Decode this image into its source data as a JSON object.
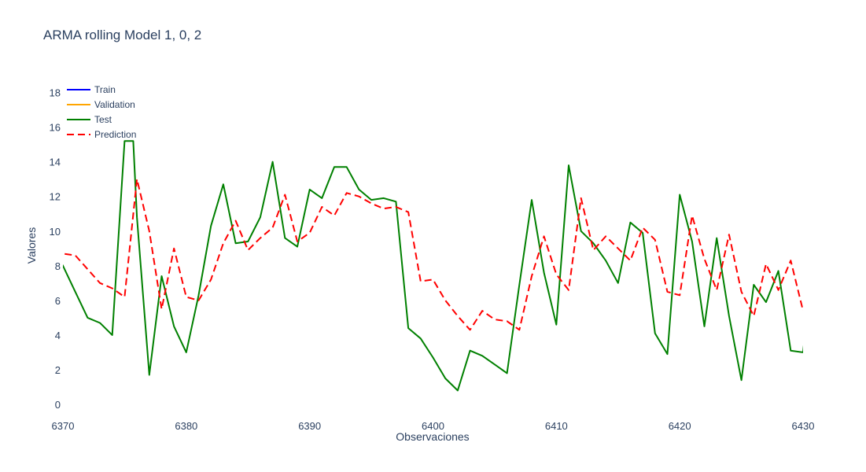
{
  "chart_data": {
    "type": "line",
    "title": "ARMA rolling Model 1, 0, 2",
    "xlabel": "Observaciones",
    "ylabel": "Valores",
    "xlim": [
      6370,
      6430
    ],
    "ylim": [
      -0.5,
      18.8
    ],
    "xticks": [
      6370,
      6380,
      6390,
      6400,
      6410,
      6420,
      6430
    ],
    "yticks": [
      0,
      2,
      4,
      6,
      8,
      10,
      12,
      14,
      16,
      18
    ],
    "grid": false,
    "legend_position": "top-left",
    "series": [
      {
        "name": "Train",
        "color": "#0000ff",
        "dash": "solid",
        "x": [],
        "values": []
      },
      {
        "name": "Validation",
        "color": "#ffa500",
        "dash": "solid",
        "x": [],
        "values": []
      },
      {
        "name": "Test",
        "color": "#008000",
        "dash": "solid",
        "x": [
          6369.5,
          6370,
          6371,
          6372,
          6373,
          6374,
          6375,
          6375.7,
          6376,
          6377,
          6378,
          6379,
          6380,
          6381,
          6382,
          6383,
          6384,
          6385,
          6386,
          6387,
          6388,
          6389,
          6390,
          6391,
          6392,
          6393,
          6394,
          6395,
          6396,
          6397,
          6398,
          6399,
          6400,
          6401,
          6402,
          6403,
          6404,
          6405,
          6406,
          6407,
          6408,
          6409,
          6410,
          6411,
          6412,
          6413,
          6414,
          6415,
          6416,
          6417,
          6418,
          6419,
          6420,
          6421,
          6422,
          6423,
          6424,
          6425,
          6426,
          6427,
          6428,
          6429,
          6430,
          6430.2
        ],
        "values": [
          8.6,
          8.0,
          6.5,
          5.0,
          4.7,
          4.0,
          15.2,
          15.2,
          10.8,
          1.7,
          7.4,
          4.5,
          3.0,
          6.3,
          10.3,
          12.7,
          9.3,
          9.4,
          10.8,
          14.0,
          9.6,
          9.1,
          12.4,
          11.9,
          13.7,
          13.7,
          12.4,
          11.8,
          11.9,
          11.7,
          4.4,
          3.8,
          2.7,
          1.5,
          0.8,
          3.1,
          2.8,
          2.3,
          1.8,
          6.9,
          11.8,
          7.6,
          4.6,
          13.8,
          10.0,
          9.3,
          8.3,
          7.0,
          10.5,
          9.9,
          4.1,
          2.9,
          12.1,
          9.4,
          4.5,
          9.6,
          5.1,
          1.4,
          6.9,
          5.9,
          7.7,
          3.1,
          3.0,
          4.3
        ]
      },
      {
        "name": "Prediction",
        "color": "#ff0000",
        "dash": "dash",
        "x": [
          6369.5,
          6370,
          6371,
          6372,
          6373,
          6374,
          6375,
          6376,
          6377,
          6378,
          6379,
          6380,
          6381,
          6382,
          6383,
          6384,
          6385,
          6386,
          6387,
          6388,
          6389,
          6390,
          6391,
          6392,
          6393,
          6394,
          6395,
          6396,
          6397,
          6398,
          6399,
          6400,
          6401,
          6402,
          6403,
          6404,
          6405,
          6406,
          6407,
          6408,
          6409,
          6410,
          6411,
          6412,
          6413,
          6414,
          6415,
          6416,
          6417,
          6418,
          6419,
          6420,
          6421,
          6422,
          6423,
          6424,
          6425,
          6426,
          6427,
          6428,
          6429,
          6430,
          6430.2
        ],
        "values": [
          9.1,
          8.7,
          8.6,
          7.8,
          7.0,
          6.7,
          6.2,
          13.0,
          10.0,
          5.5,
          9.0,
          6.2,
          6.0,
          7.2,
          9.3,
          10.6,
          8.9,
          9.6,
          10.2,
          12.1,
          9.4,
          9.9,
          11.4,
          10.9,
          12.2,
          12.0,
          11.6,
          11.3,
          11.4,
          11.1,
          7.1,
          7.2,
          6.0,
          5.1,
          4.3,
          5.4,
          4.9,
          4.8,
          4.3,
          7.4,
          9.7,
          7.5,
          6.6,
          11.9,
          8.9,
          9.7,
          9.0,
          8.3,
          10.2,
          9.5,
          6.5,
          6.3,
          10.9,
          8.4,
          6.6,
          9.8,
          6.5,
          5.1,
          8.1,
          6.6,
          8.3,
          5.4,
          5.5
        ]
      }
    ]
  }
}
